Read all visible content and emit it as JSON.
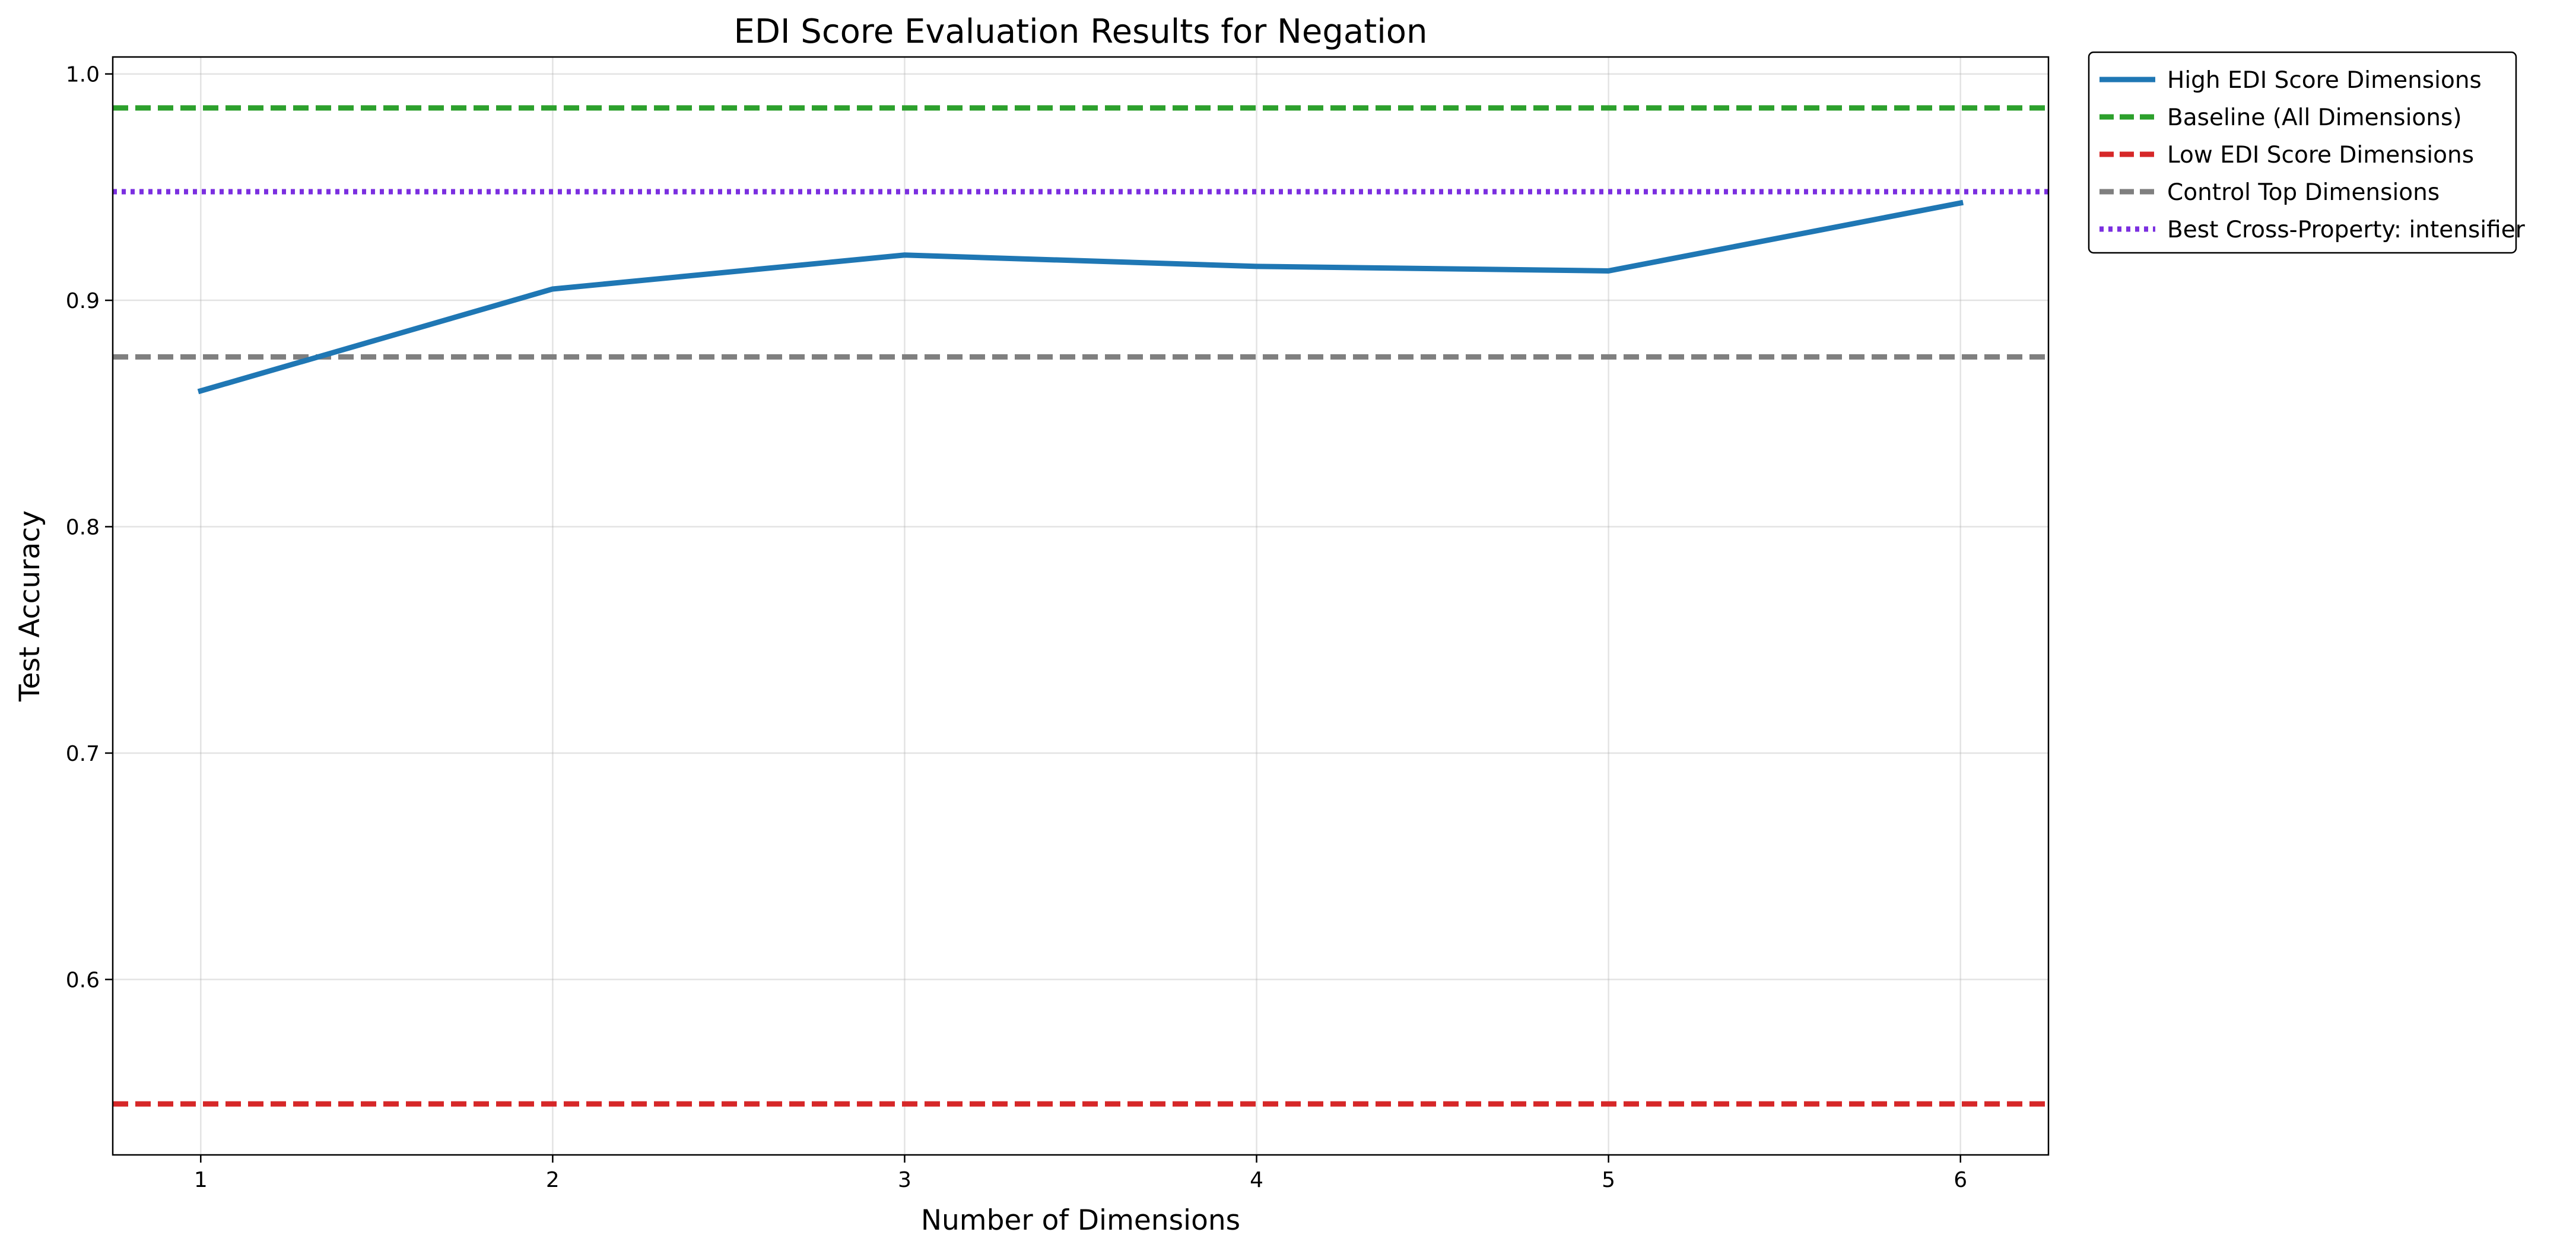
{
  "chart_data": {
    "type": "line",
    "title": "EDI Score Evaluation Results for Negation",
    "xlabel": "Number of Dimensions",
    "ylabel": "Test Accuracy",
    "xlim": [
      0.75,
      6.25
    ],
    "ylim": [
      0.5225,
      1.0075
    ],
    "x_ticks": [
      1,
      2,
      3,
      4,
      5,
      6
    ],
    "y_ticks": [
      0.6,
      0.7,
      0.8,
      0.9,
      1.0
    ],
    "y_tick_labels": [
      "0.6",
      "0.7",
      "0.8",
      "0.9",
      "1.0"
    ],
    "grid": true,
    "legend_position": "outside-top-right",
    "series": [
      {
        "name": "High EDI Score Dimensions",
        "kind": "line",
        "style": "solid",
        "color": "#1f77b4",
        "x": [
          1,
          2,
          3,
          4,
          5,
          6
        ],
        "values": [
          0.86,
          0.905,
          0.92,
          0.915,
          0.913,
          0.943
        ]
      },
      {
        "name": "Baseline (All Dimensions)",
        "kind": "hline",
        "style": "dashed",
        "color": "#2ca02c",
        "value": 0.985
      },
      {
        "name": "Low EDI Score Dimensions",
        "kind": "hline",
        "style": "dashed",
        "color": "#d62728",
        "value": 0.545
      },
      {
        "name": "Control Top Dimensions",
        "kind": "hline",
        "style": "dashed",
        "color": "#7f7f7f",
        "value": 0.875
      },
      {
        "name": "Best Cross-Property: intensifier",
        "kind": "hline",
        "style": "dotted",
        "color": "#7b2fe0",
        "value": 0.948
      }
    ]
  }
}
